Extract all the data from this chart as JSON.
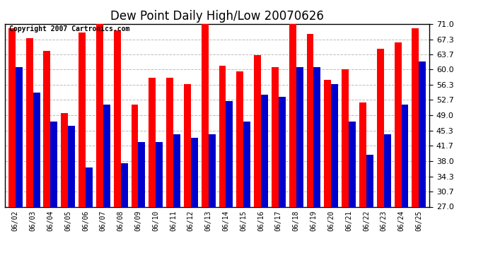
{
  "title": "Dew Point Daily High/Low 20070626",
  "copyright": "Copyright 2007 Cartronics.com",
  "dates": [
    "06/02",
    "06/03",
    "06/04",
    "06/05",
    "06/06",
    "06/07",
    "06/08",
    "06/09",
    "06/10",
    "06/11",
    "06/12",
    "06/13",
    "06/14",
    "06/15",
    "06/16",
    "06/17",
    "06/18",
    "06/19",
    "06/20",
    "06/21",
    "06/22",
    "06/23",
    "06/24",
    "06/25"
  ],
  "highs": [
    70.0,
    67.5,
    64.5,
    49.5,
    69.0,
    71.5,
    69.5,
    51.5,
    58.0,
    58.0,
    56.5,
    71.0,
    61.0,
    59.5,
    63.5,
    60.5,
    71.0,
    68.5,
    57.5,
    60.0,
    52.0,
    65.0,
    66.5,
    70.0
  ],
  "lows": [
    60.5,
    54.5,
    47.5,
    46.5,
    36.5,
    51.5,
    37.5,
    42.5,
    42.5,
    44.5,
    43.5,
    44.5,
    52.5,
    47.5,
    54.0,
    53.5,
    60.5,
    60.5,
    56.5,
    47.5,
    39.5,
    44.5,
    51.5,
    62.0
  ],
  "high_color": "#ff0000",
  "low_color": "#0000cc",
  "ymin": 27.0,
  "ymax": 71.0,
  "yticks": [
    27.0,
    30.7,
    34.3,
    38.0,
    41.7,
    45.3,
    49.0,
    52.7,
    56.3,
    60.0,
    63.7,
    67.3,
    71.0
  ],
  "bg_color": "#ffffff",
  "grid_color": "#bbbbbb",
  "title_fontsize": 12,
  "copyright_fontsize": 7,
  "bar_width": 0.4
}
